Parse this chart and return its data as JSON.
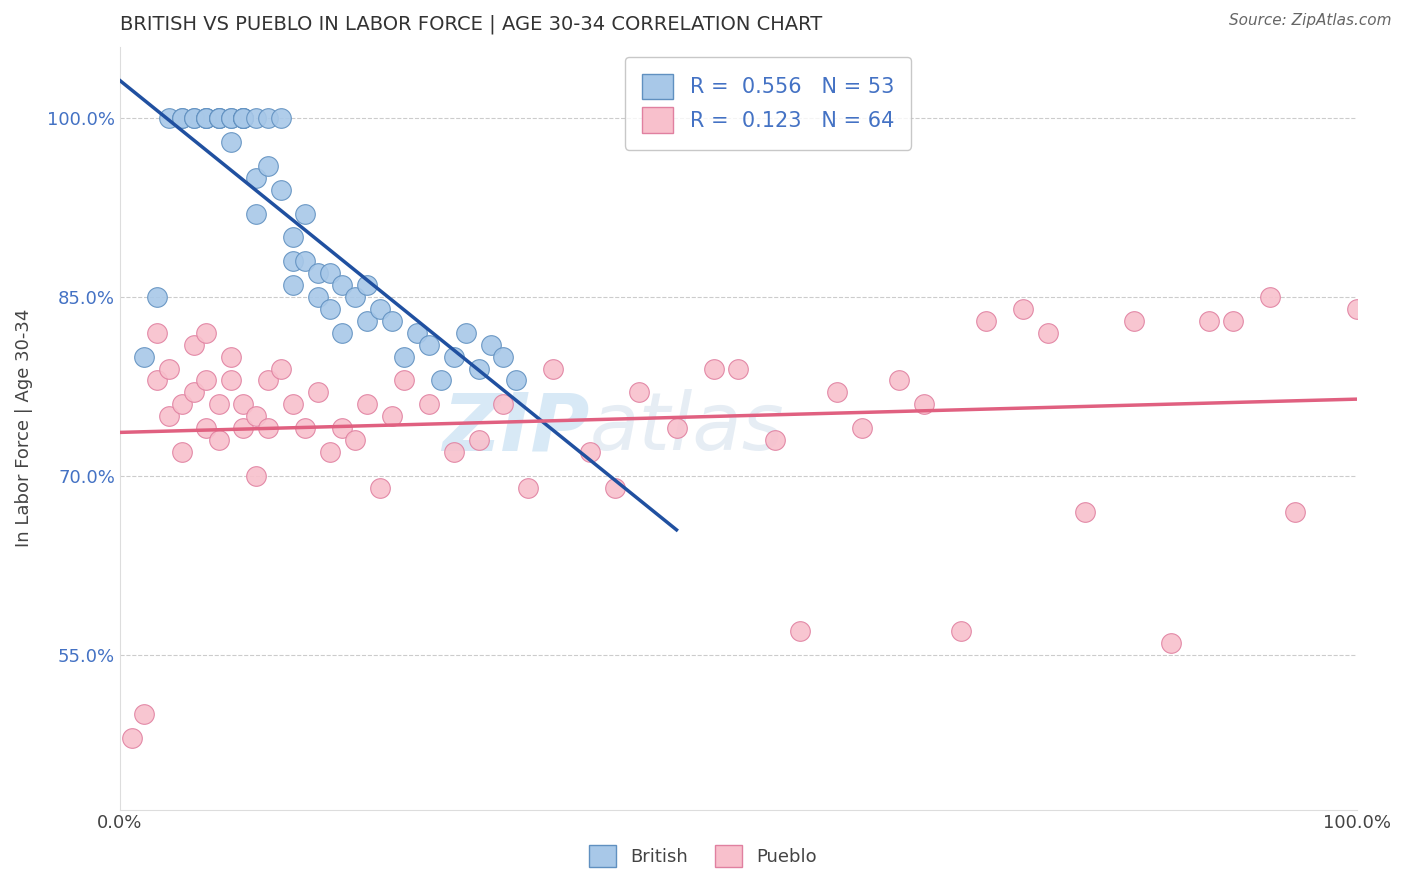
{
  "title": "BRITISH VS PUEBLO IN LABOR FORCE | AGE 30-34 CORRELATION CHART",
  "source_text": "Source: ZipAtlas.com",
  "ylabel": "In Labor Force | Age 30-34",
  "xlim": [
    0.0,
    1.0
  ],
  "ylim": [
    0.42,
    1.06
  ],
  "xticks": [
    0.0,
    1.0
  ],
  "xticklabels": [
    "0.0%",
    "100.0%"
  ],
  "yticks": [
    0.55,
    0.7,
    0.85,
    1.0
  ],
  "yticklabels": [
    "55.0%",
    "70.0%",
    "85.0%",
    "100.0%"
  ],
  "grid_yticks": [
    0.55,
    0.7,
    0.85,
    1.0
  ],
  "british_R": 0.556,
  "british_N": 53,
  "pueblo_R": 0.123,
  "pueblo_N": 64,
  "british_color": "#A8C8E8",
  "pueblo_color": "#F8C0CC",
  "british_edge_color": "#6090C0",
  "pueblo_edge_color": "#E080A0",
  "british_line_color": "#2050A0",
  "pueblo_line_color": "#E06080",
  "watermark_zip": "ZIP",
  "watermark_atlas": "atlas",
  "british_x": [
    0.02,
    0.03,
    0.04,
    0.05,
    0.05,
    0.06,
    0.06,
    0.07,
    0.07,
    0.07,
    0.08,
    0.08,
    0.08,
    0.09,
    0.09,
    0.09,
    0.1,
    0.1,
    0.1,
    0.1,
    0.11,
    0.11,
    0.11,
    0.12,
    0.12,
    0.13,
    0.13,
    0.14,
    0.14,
    0.14,
    0.15,
    0.15,
    0.16,
    0.16,
    0.17,
    0.17,
    0.18,
    0.18,
    0.19,
    0.2,
    0.2,
    0.21,
    0.22,
    0.23,
    0.24,
    0.25,
    0.26,
    0.27,
    0.28,
    0.29,
    0.3,
    0.31,
    0.32
  ],
  "british_y": [
    0.8,
    0.85,
    1.0,
    1.0,
    1.0,
    1.0,
    1.0,
    1.0,
    1.0,
    1.0,
    1.0,
    1.0,
    1.0,
    0.98,
    1.0,
    1.0,
    1.0,
    1.0,
    1.0,
    1.0,
    0.92,
    0.95,
    1.0,
    0.96,
    1.0,
    0.94,
    1.0,
    0.9,
    0.88,
    0.86,
    0.88,
    0.92,
    0.87,
    0.85,
    0.87,
    0.84,
    0.86,
    0.82,
    0.85,
    0.83,
    0.86,
    0.84,
    0.83,
    0.8,
    0.82,
    0.81,
    0.78,
    0.8,
    0.82,
    0.79,
    0.81,
    0.8,
    0.78
  ],
  "pueblo_x": [
    0.01,
    0.02,
    0.03,
    0.03,
    0.04,
    0.04,
    0.05,
    0.05,
    0.06,
    0.06,
    0.07,
    0.07,
    0.07,
    0.08,
    0.08,
    0.09,
    0.09,
    0.1,
    0.1,
    0.11,
    0.11,
    0.12,
    0.12,
    0.13,
    0.14,
    0.15,
    0.16,
    0.17,
    0.18,
    0.19,
    0.2,
    0.21,
    0.22,
    0.23,
    0.25,
    0.27,
    0.29,
    0.31,
    0.33,
    0.35,
    0.38,
    0.4,
    0.42,
    0.45,
    0.48,
    0.5,
    0.53,
    0.55,
    0.58,
    0.6,
    0.63,
    0.65,
    0.68,
    0.7,
    0.73,
    0.75,
    0.78,
    0.82,
    0.85,
    0.88,
    0.9,
    0.93,
    0.95,
    1.0
  ],
  "pueblo_y": [
    0.48,
    0.5,
    0.78,
    0.82,
    0.75,
    0.79,
    0.76,
    0.72,
    0.77,
    0.81,
    0.74,
    0.78,
    0.82,
    0.76,
    0.73,
    0.78,
    0.8,
    0.76,
    0.74,
    0.75,
    0.7,
    0.78,
    0.74,
    0.79,
    0.76,
    0.74,
    0.77,
    0.72,
    0.74,
    0.73,
    0.76,
    0.69,
    0.75,
    0.78,
    0.76,
    0.72,
    0.73,
    0.76,
    0.69,
    0.79,
    0.72,
    0.69,
    0.77,
    0.74,
    0.79,
    0.79,
    0.73,
    0.57,
    0.77,
    0.74,
    0.78,
    0.76,
    0.57,
    0.83,
    0.84,
    0.82,
    0.67,
    0.83,
    0.56,
    0.83,
    0.83,
    0.85,
    0.67,
    0.84
  ]
}
